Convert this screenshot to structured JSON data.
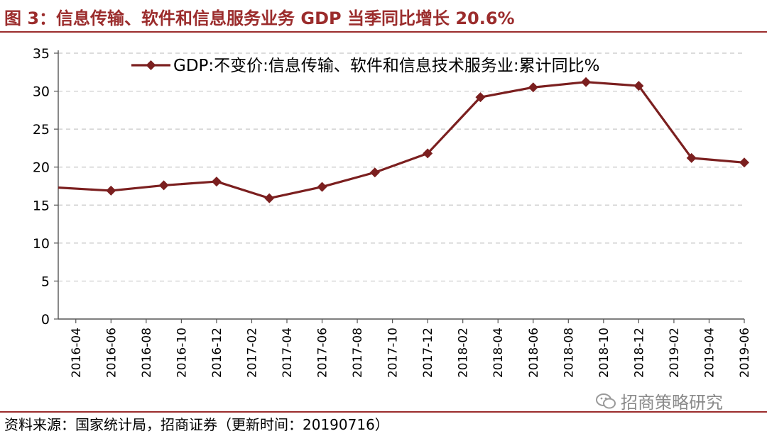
{
  "figure": {
    "title": "图 3：信息传输、软件和信息服务业务 GDP 当季同比增长 20.6%",
    "source": "资料来源：国家统计局，招商证券（更新时间：20190716）",
    "watermark": "招商策略研究",
    "watermark_icon": "wechat-icon"
  },
  "colors": {
    "series": "#7b1f1f",
    "title": "#9b2c2c",
    "grid": "#c8c8c8"
  },
  "chart_data": {
    "type": "line",
    "title": "",
    "xlabel": "",
    "ylabel": "",
    "ylim": [
      0,
      35
    ],
    "yticks": [
      0,
      5,
      10,
      15,
      20,
      25,
      30,
      35
    ],
    "grid": "horizontal dashed",
    "legend_position": "top",
    "categories": [
      "2016-04",
      "2016-06",
      "2016-08",
      "2016-10",
      "2016-12",
      "2017-02",
      "2017-04",
      "2017-06",
      "2017-08",
      "2017-10",
      "2017-12",
      "2018-02",
      "2018-04",
      "2018-06",
      "2018-08",
      "2018-10",
      "2018-12",
      "2019-02",
      "2019-04",
      "2019-06"
    ],
    "series": [
      {
        "name": "GDP:不变价:信息传输、软件和信息技术服务业:累计同比%",
        "marker": "diamond",
        "points": [
          {
            "x": "2016-03",
            "y": 17.3
          },
          {
            "x": "2016-06",
            "y": 16.9
          },
          {
            "x": "2016-09",
            "y": 17.6
          },
          {
            "x": "2016-12",
            "y": 18.1
          },
          {
            "x": "2017-03",
            "y": 15.9
          },
          {
            "x": "2017-06",
            "y": 17.4
          },
          {
            "x": "2017-09",
            "y": 19.3
          },
          {
            "x": "2017-12",
            "y": 21.8
          },
          {
            "x": "2018-03",
            "y": 29.2
          },
          {
            "x": "2018-06",
            "y": 30.5
          },
          {
            "x": "2018-09",
            "y": 31.2
          },
          {
            "x": "2018-12",
            "y": 30.7
          },
          {
            "x": "2019-03",
            "y": 21.2
          },
          {
            "x": "2019-06",
            "y": 20.6
          }
        ]
      }
    ]
  }
}
